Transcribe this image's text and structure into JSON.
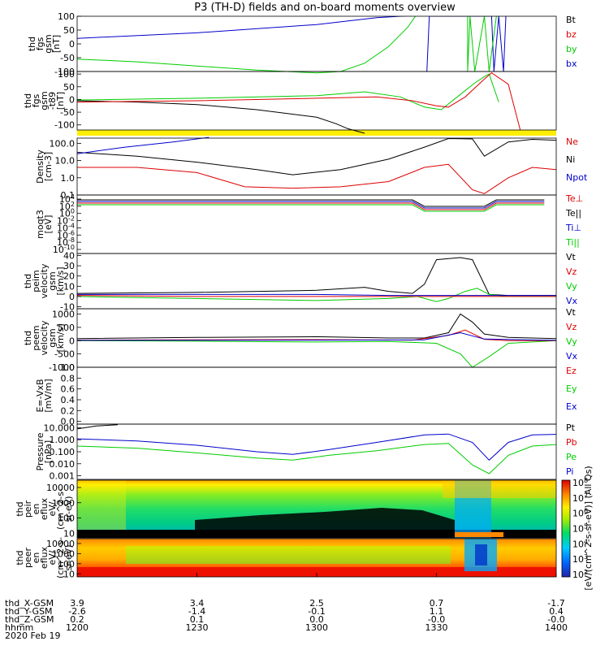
{
  "title": "P3 (TH-D) fields and on-board moments overview",
  "chart_data": {
    "type": "line",
    "title": "P3 (TH-D) fields and on-board moments overview",
    "x_time_ticks": [
      "1200",
      "1230",
      "1300",
      "1330",
      "1400"
    ],
    "x_range_utc": [
      "12:00",
      "14:00"
    ],
    "date_label": "2020 Feb 19",
    "orbit": {
      "labels": [
        "thd_X-GSM",
        "thd_Y-GSM",
        "thd_Z-GSM",
        "hhmm"
      ],
      "x_gsm": [
        "3.9",
        "3.4",
        "2.5",
        "0.7",
        "-1.7"
      ],
      "y_gsm": [
        "-2.6",
        "-1.4",
        "-0.1",
        "1.1",
        "0.4"
      ],
      "z_gsm": [
        "0.2",
        "0.1",
        "0.0",
        "-0.0",
        "-0.0"
      ]
    },
    "panels": [
      {
        "id": "fgs",
        "ylabel": [
          "thd",
          "fgs",
          "gsm",
          "[nT]"
        ],
        "yticks": [
          "100",
          "50",
          "0",
          "-50",
          "-100"
        ],
        "ylim": [
          -100,
          100
        ],
        "legend": [
          {
            "label": "Bt",
            "color": "#000000"
          },
          {
            "label": "bz",
            "color": "#dd0000"
          },
          {
            "label": "by",
            "color": "#00cc00"
          },
          {
            "label": "bx",
            "color": "#0000cc"
          }
        ],
        "series": [
          {
            "name": "bx",
            "color": "#0000cc",
            "x": [
              12.0,
              12.5,
              13.0,
              13.25,
              13.45,
              13.48
            ],
            "y": [
              20,
              40,
              70,
              95,
              105,
              130
            ],
            "extra": [
              [
                13.46,
                -100
              ],
              [
                13.47,
                100
              ],
              [
                13.73,
                100
              ],
              [
                13.74,
                -100
              ],
              [
                13.76,
                100
              ],
              [
                13.78,
                -100
              ],
              [
                13.79,
                100
              ]
            ]
          },
          {
            "name": "by",
            "color": "#00cc00",
            "x": [
              12.0,
              12.25,
              12.5,
              12.75,
              13.0,
              13.1,
              13.2,
              13.3,
              13.38,
              13.42
            ],
            "y": [
              -55,
              -65,
              -80,
              -95,
              -105,
              -100,
              -70,
              -10,
              60,
              110
            ],
            "extra": [
              [
                13.63,
                100
              ],
              [
                13.63,
                -100
              ],
              [
                13.64,
                100
              ],
              [
                13.66,
                -100
              ],
              [
                13.7,
                100
              ],
              [
                13.72,
                -100
              ],
              [
                13.75,
                100
              ]
            ]
          }
        ]
      },
      {
        "id": "fgs_minus_t89",
        "ylabel": [
          "thd",
          "fgs",
          "gsm",
          "-t89",
          "[nT]"
        ],
        "yticks": [
          "100",
          "50",
          "0",
          "-50",
          "-100"
        ],
        "ylim": [
          -120,
          110
        ],
        "series": [
          {
            "name": "black",
            "color": "#000000",
            "x": [
              12.0,
              12.25,
              12.5,
              12.75,
              13.0,
              13.08,
              13.13,
              13.2
            ],
            "y": [
              -5,
              -10,
              -20,
              -40,
              -70,
              -95,
              -115,
              -135
            ]
          },
          {
            "name": "green",
            "color": "#00cc00",
            "x": [
              12.0,
              12.5,
              13.0,
              13.2,
              13.35,
              13.45,
              13.52,
              13.6,
              13.66,
              13.7,
              13.72,
              13.76
            ],
            "y": [
              -2,
              5,
              15,
              30,
              10,
              -30,
              -40,
              20,
              65,
              90,
              100,
              -10
            ]
          },
          {
            "name": "red",
            "color": "#dd0000",
            "x": [
              12.0,
              12.5,
              13.0,
              13.25,
              13.4,
              13.5,
              13.55,
              13.62,
              13.7,
              13.73,
              13.8,
              13.85
            ],
            "y": [
              -10,
              -5,
              5,
              10,
              -5,
              -25,
              -30,
              10,
              80,
              105,
              60,
              -120
            ]
          }
        ]
      },
      {
        "id": "density",
        "ylabel": [
          "Density",
          "[cm-3]"
        ],
        "yticks": [
          "100.0",
          "10.0",
          "1.0",
          "0.1"
        ],
        "ylim_log": [
          0.1,
          200
        ],
        "legend": [
          {
            "label": "Ne",
            "color": "#dd0000"
          },
          {
            "label": "Ni",
            "color": "#000000"
          },
          {
            "label": "Npot",
            "color": "#0000cc"
          }
        ],
        "series": [
          {
            "name": "Ni",
            "color": "#000000",
            "x": [
              12.0,
              12.25,
              12.5,
              12.75,
              12.9,
              13.1,
              13.3,
              13.45,
              13.55,
              13.65,
              13.7,
              13.8,
              13.9,
              14.0
            ],
            "y": [
              30,
              18,
              8,
              3,
              1.5,
              3,
              12,
              60,
              190,
              180,
              18,
              120,
              170,
              150
            ]
          },
          {
            "name": "Ne",
            "color": "#dd0000",
            "x": [
              12.0,
              12.25,
              12.5,
              12.7,
              12.9,
              13.1,
              13.3,
              13.45,
              13.55,
              13.65,
              13.7,
              13.8,
              13.9,
              14.0
            ],
            "y": [
              4,
              4,
              2,
              0.3,
              0.25,
              0.3,
              0.6,
              4,
              6,
              0.2,
              0.12,
              1,
              4,
              3
            ]
          },
          {
            "name": "Npot",
            "color": "#0000cc",
            "x": [
              12.0,
              12.2,
              12.4,
              12.55
            ],
            "y": [
              25,
              60,
              120,
              220
            ]
          }
        ]
      },
      {
        "id": "temperature",
        "ylabel": [
          "moqt3",
          "[eV]"
        ],
        "yticks": [
          "10^4",
          "10^2",
          "10^0",
          "10^-2",
          "10^-4",
          "10^-6",
          "10^-8",
          "10^-10"
        ],
        "legend": [
          {
            "label": "Te⊥",
            "color": "#dd0000"
          },
          {
            "label": "Te||",
            "color": "#000000"
          },
          {
            "label": "Ti⊥",
            "color": "#0000cc"
          },
          {
            "label": "Ti||",
            "color": "#00cc00"
          }
        ]
      },
      {
        "id": "peim_velocity",
        "ylabel": [
          "thd",
          "peim",
          "velocity",
          "gsm",
          "[km/s]"
        ],
        "yticks": [
          "40",
          "30",
          "20",
          "10",
          "0",
          "-10"
        ],
        "ylim": [
          -12,
          42
        ],
        "legend": [
          {
            "label": "Vt",
            "color": "#000000"
          },
          {
            "label": "Vz",
            "color": "#dd0000"
          },
          {
            "label": "Vy",
            "color": "#00cc00"
          },
          {
            "label": "Vx",
            "color": "#0000cc"
          }
        ],
        "series": [
          {
            "name": "Vt",
            "color": "#000000",
            "x": [
              12.0,
              12.5,
              13.0,
              13.2,
              13.3,
              13.4,
              13.45,
              13.5,
              13.6,
              13.65,
              13.72,
              13.8,
              14.0
            ],
            "y": [
              3,
              4,
              6,
              9,
              5,
              3,
              12,
              36,
              38,
              36,
              2,
              1,
              1
            ]
          },
          {
            "name": "Vy",
            "color": "#00cc00",
            "x": [
              12.0,
              12.5,
              13.0,
              13.3,
              13.42,
              13.5,
              13.55,
              13.62,
              13.67,
              13.72,
              13.8,
              14.0
            ],
            "y": [
              0,
              -2,
              -4,
              -2,
              0,
              -5,
              -2,
              5,
              8,
              2,
              0,
              0
            ]
          },
          {
            "name": "Vz",
            "color": "#dd0000",
            "x": [
              12.0,
              12.5,
              13.0,
              13.3,
              14.0
            ],
            "y": [
              1,
              0,
              0,
              0,
              0
            ]
          },
          {
            "name": "Vx",
            "color": "#0000cc",
            "x": [
              12.0,
              12.5,
              13.0,
              13.3,
              14.0
            ],
            "y": [
              2,
              2,
              2,
              1,
              1
            ]
          }
        ]
      },
      {
        "id": "peem_velocity",
        "ylabel": [
          "thd",
          "peem",
          "velocity",
          "gsm",
          "[km/s]"
        ],
        "yticks": [
          "1000",
          "500",
          "0",
          "-500",
          "-1000"
        ],
        "ylim": [
          -1000,
          1200
        ],
        "legend": [
          {
            "label": "Vt",
            "color": "#000000"
          },
          {
            "label": "Vz",
            "color": "#dd0000"
          },
          {
            "label": "Vy",
            "color": "#00cc00"
          },
          {
            "label": "Vx",
            "color": "#0000cc"
          }
        ],
        "series": [
          {
            "name": "Vt",
            "color": "#000000",
            "x": [
              12.0,
              12.5,
              13.0,
              13.3,
              13.45,
              13.55,
              13.6,
              13.65,
              13.7,
              13.8,
              14.0
            ],
            "y": [
              80,
              120,
              150,
              100,
              100,
              300,
              1000,
              700,
              250,
              120,
              80
            ]
          },
          {
            "name": "Vy",
            "color": "#00cc00",
            "x": [
              12.0,
              12.5,
              13.0,
              13.3,
              13.5,
              13.6,
              13.65,
              13.72,
              13.8,
              14.0
            ],
            "y": [
              0,
              -20,
              -50,
              -30,
              -100,
              -500,
              -1000,
              -600,
              -100,
              0
            ]
          },
          {
            "name": "Vz",
            "color": "#dd0000",
            "x": [
              12.0,
              12.5,
              13.0,
              13.4,
              13.55,
              13.62,
              13.7,
              13.8,
              14.0
            ],
            "y": [
              20,
              30,
              40,
              20,
              200,
              400,
              50,
              0,
              0
            ]
          },
          {
            "name": "Vx",
            "color": "#0000cc",
            "x": [
              12.0,
              13.0,
              13.45,
              13.6,
              13.7,
              14.0
            ],
            "y": [
              10,
              20,
              30,
              300,
              60,
              10
            ]
          }
        ]
      },
      {
        "id": "efield",
        "ylabel": [
          "E=-VxB",
          "[mV/m]"
        ],
        "yticks": [
          "1.0",
          "0.8",
          "0.6",
          "0.4",
          "0.2",
          "0.0"
        ],
        "ylim": [
          -0.05,
          1.0
        ],
        "legend": [
          {
            "label": "Ez",
            "color": "#dd0000"
          },
          {
            "label": "Ey",
            "color": "#00cc00"
          },
          {
            "label": "Ex",
            "color": "#0000cc"
          }
        ]
      },
      {
        "id": "pressure",
        "ylabel": [
          "Pressure",
          "[nPa]"
        ],
        "yticks": [
          "10.000",
          "1.000",
          "0.100",
          "0.010",
          "0.001"
        ],
        "ylim_log": [
          0.0005,
          20
        ],
        "legend": [
          {
            "label": "Pt",
            "color": "#000000"
          },
          {
            "label": "Pb",
            "color": "#dd0000"
          },
          {
            "label": "Pe",
            "color": "#00cc00"
          },
          {
            "label": "Pi",
            "color": "#0000cc"
          }
        ],
        "series": [
          {
            "name": "Pi",
            "color": "#0000cc",
            "x": [
              12.0,
              12.25,
              12.5,
              12.75,
              12.9,
              13.05,
              13.25,
              13.45,
              13.55,
              13.65,
              13.72,
              13.8,
              13.9,
              14.0
            ],
            "y": [
              1.2,
              0.8,
              0.35,
              0.1,
              0.06,
              0.15,
              0.6,
              2.5,
              3,
              0.6,
              0.02,
              0.6,
              2.5,
              2.8
            ]
          },
          {
            "name": "Pe",
            "color": "#00cc00",
            "x": [
              12.0,
              12.25,
              12.5,
              12.75,
              12.9,
              13.05,
              13.25,
              13.45,
              13.55,
              13.65,
              13.72,
              13.8,
              13.9,
              14.0
            ],
            "y": [
              0.3,
              0.2,
              0.08,
              0.03,
              0.02,
              0.05,
              0.12,
              0.4,
              0.5,
              0.008,
              0.0015,
              0.05,
              0.3,
              0.4
            ]
          },
          {
            "name": "Pt",
            "color": "#000000",
            "x": [
              12.0,
              12.08,
              12.17
            ],
            "y": [
              8,
              14,
              18
            ]
          }
        ]
      },
      {
        "id": "peir_en_eflux",
        "type": "heatmap",
        "ylabel": [
          "thd",
          "peir",
          "en",
          "eflux",
          "eV/",
          "(cm^2-s-",
          "sr-eV)"
        ],
        "yticks": [
          "10000",
          "1000",
          "100",
          "10"
        ],
        "ylim_log": [
          5,
          30000
        ]
      },
      {
        "id": "peer_en_eflux",
        "type": "heatmap",
        "ylabel": [
          "thd",
          "peer",
          "en",
          "eflux",
          "eV/",
          "(cm^2-s-",
          "sr-eV)"
        ],
        "yticks": [
          "10000",
          "1000",
          "100",
          "10"
        ],
        "ylim_log": [
          5,
          30000
        ]
      }
    ],
    "colorbar": {
      "ticks": [
        "10^8",
        "10^7",
        "10^6",
        "10^5",
        "10^4",
        "10^3",
        "10^2"
      ],
      "label": "[eV/(cm^2-s-sr-eV)] (All Qs)"
    }
  }
}
